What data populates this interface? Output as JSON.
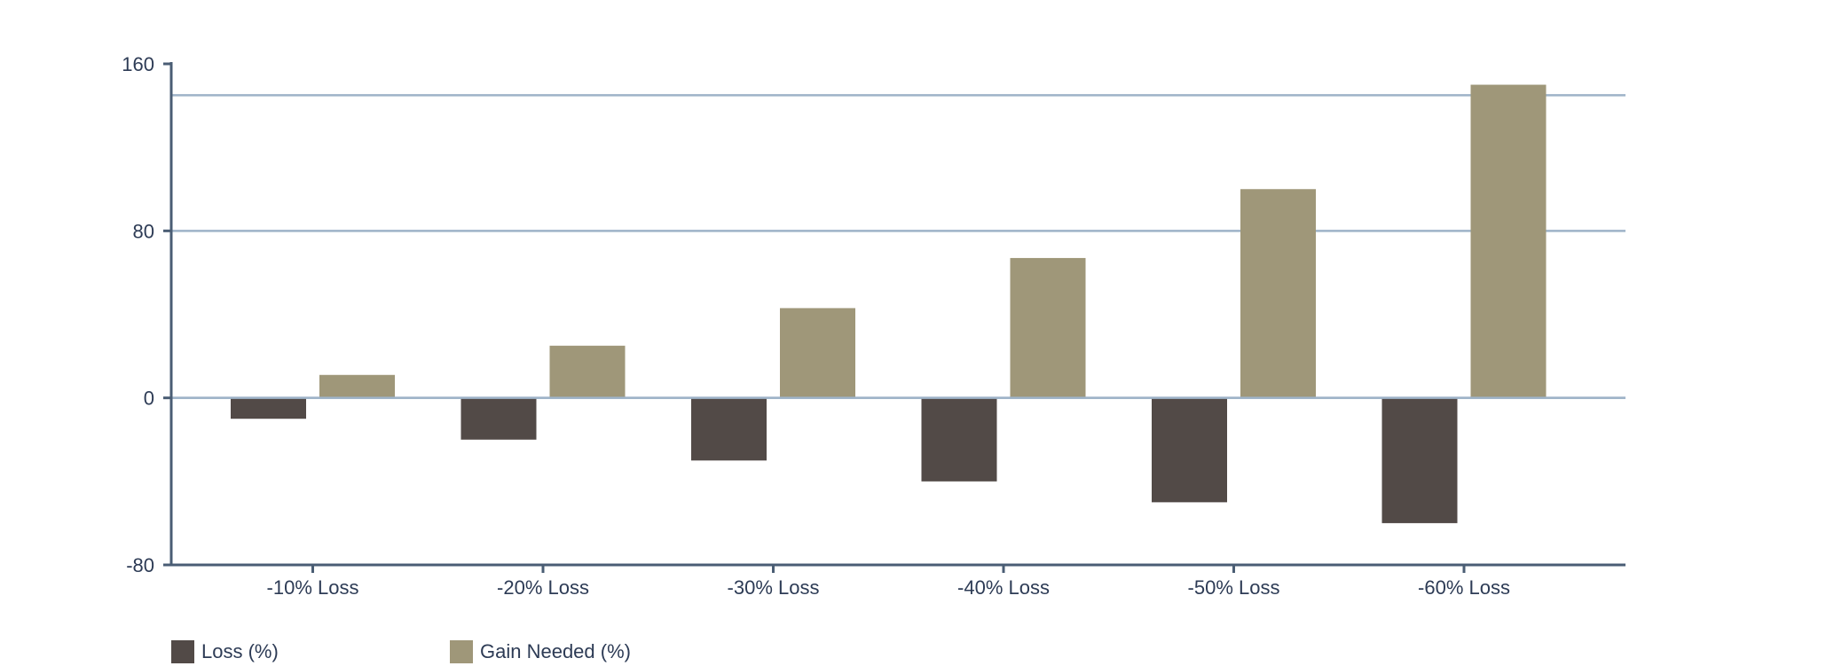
{
  "chart_data": {
    "type": "bar",
    "categories": [
      "-10% Loss",
      "-20% Loss",
      "-30% Loss",
      "-40% Loss",
      "-50% Loss",
      "-60% Loss"
    ],
    "series": [
      {
        "name": "Loss (%)",
        "values": [
          -10,
          -20,
          -30,
          -40,
          -50,
          -60
        ],
        "color": "#524a47"
      },
      {
        "name": "Gain Needed (%)",
        "values": [
          11,
          25,
          43,
          67,
          100,
          150
        ],
        "color": "#9f9779"
      }
    ],
    "ylim": [
      -80,
      160
    ],
    "yticks": [
      "-80",
      "0",
      "80",
      "160"
    ],
    "gridlines": [
      0,
      80,
      145
    ],
    "grid": true,
    "legend_placement": "bottom-left",
    "colors": {
      "axis": "#4a5d74",
      "grid": "#9eb3c8",
      "text": "#2d3b55"
    }
  }
}
